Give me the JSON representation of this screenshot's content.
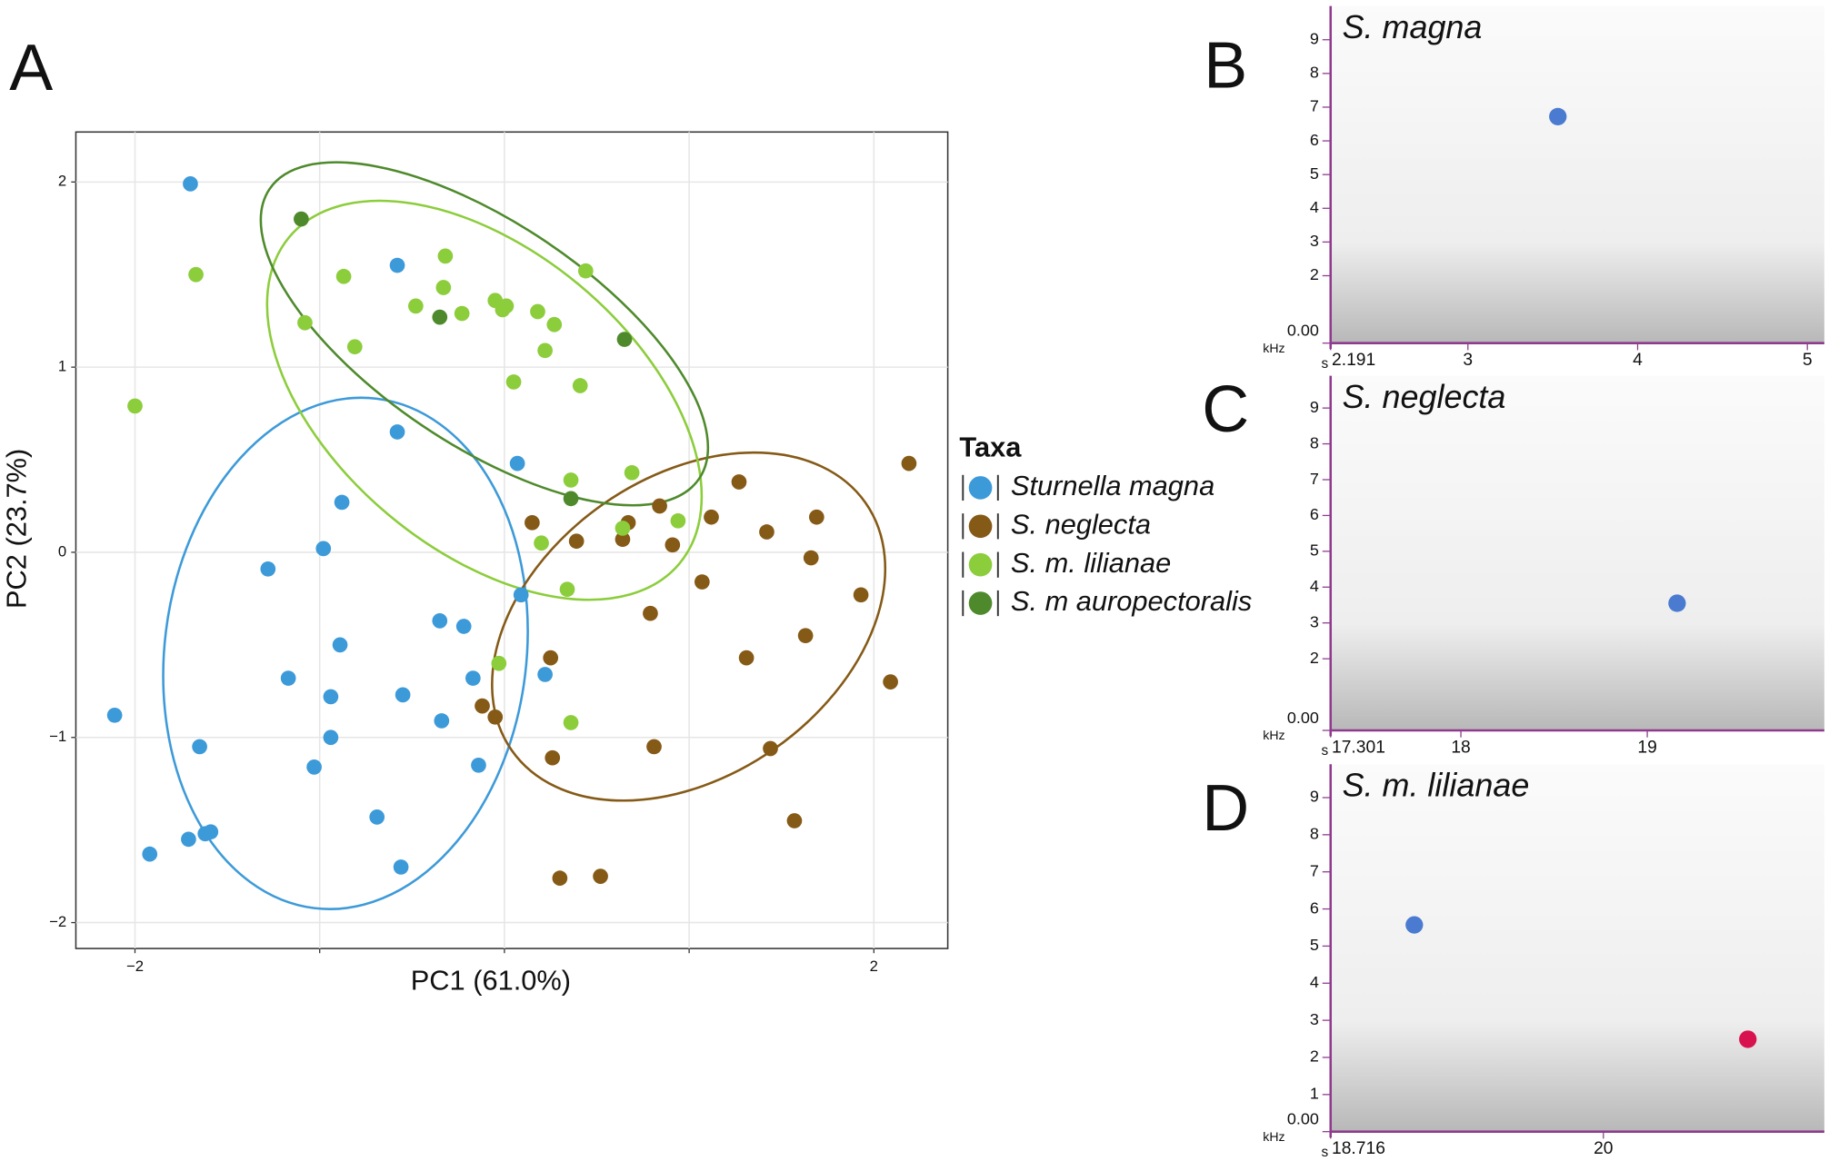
{
  "chart_data": [
    {
      "type": "scatter",
      "panel": "A",
      "xlabel": "PC1 (61.0%)",
      "ylabel": "PC2 (23.7%)",
      "xlim": [
        -2.32,
        2.4
      ],
      "ylim": [
        -2.14,
        2.27
      ],
      "xticks": [
        {
          "value": -2,
          "label": "−2"
        },
        {
          "value": 2,
          "label": "2"
        }
      ],
      "xgrid": [
        -1,
        0,
        1
      ],
      "yticks": [
        {
          "value": -2,
          "label": "−2"
        },
        {
          "value": -1,
          "label": "−1"
        },
        0,
        1,
        2
      ],
      "grid": true,
      "legend_title": "Taxa",
      "legend": "right",
      "series": [
        {
          "name": "Sturnella magna",
          "color": "#3d9ad9",
          "x": [
            -1.7,
            -0.58,
            -0.58,
            0.07,
            -0.88,
            -0.98,
            -1.28,
            -0.89,
            -0.35,
            -0.22,
            -1.17,
            -0.94,
            -0.55,
            -0.17,
            0.09,
            0.22,
            -0.34,
            -0.94,
            -2.11,
            -1.65,
            -1.03,
            -0.14,
            -0.69,
            -1.59,
            -1.62,
            -1.71,
            -1.92,
            -0.56
          ],
          "y": [
            1.99,
            1.55,
            0.65,
            0.48,
            0.27,
            0.02,
            -0.09,
            -0.5,
            -0.37,
            -0.4,
            -0.68,
            -0.78,
            -0.77,
            -0.68,
            -0.23,
            -0.66,
            -0.91,
            -1.0,
            -0.88,
            -1.05,
            -1.16,
            -1.15,
            -1.43,
            -1.51,
            -1.52,
            -1.55,
            -1.63,
            -1.7
          ]
        },
        {
          "name": "S. neglecta",
          "color": "#855a17",
          "x": [
            2.19,
            1.27,
            0.15,
            0.67,
            0.84,
            1.12,
            1.69,
            1.42,
            0.64,
            0.39,
            0.91,
            1.66,
            1.07,
            1.93,
            0.79,
            1.63,
            0.25,
            1.31,
            2.09,
            -0.12,
            -0.05,
            0.81,
            1.44,
            0.26,
            1.57,
            0.3,
            0.52
          ],
          "y": [
            0.48,
            0.38,
            0.16,
            0.16,
            0.25,
            0.19,
            0.19,
            0.11,
            0.07,
            0.06,
            0.04,
            -0.03,
            -0.16,
            -0.23,
            -0.33,
            -0.45,
            -0.57,
            -0.57,
            -0.7,
            -0.83,
            -0.89,
            -1.05,
            -1.06,
            -1.11,
            -1.45,
            -1.76,
            -1.75
          ]
        },
        {
          "name": "S. m. lilianae",
          "color": "#8ccd3c",
          "x": [
            -1.67,
            -2.0,
            -1.08,
            -0.87,
            -0.81,
            -0.48,
            -0.32,
            -0.33,
            -0.23,
            -0.05,
            -0.01,
            0.01,
            0.18,
            0.27,
            0.44,
            0.22,
            0.05,
            0.41,
            0.36,
            0.69,
            0.94,
            0.64,
            0.2,
            0.34,
            -0.03,
            0.36
          ],
          "y": [
            1.5,
            0.79,
            1.24,
            1.49,
            1.11,
            1.33,
            1.6,
            1.43,
            1.29,
            1.36,
            1.31,
            1.33,
            1.3,
            1.23,
            1.52,
            1.09,
            0.92,
            0.9,
            0.39,
            0.43,
            0.17,
            0.13,
            0.05,
            -0.2,
            -0.6,
            -0.92
          ]
        },
        {
          "name": "S. m auropectoralis",
          "color": "#4e8a2c",
          "x": [
            -1.1,
            -0.35,
            0.65,
            0.36
          ],
          "y": [
            1.8,
            1.27,
            1.15,
            0.29
          ]
        }
      ]
    },
    {
      "type": "spectrogram",
      "panel": "B",
      "title": "S. magna",
      "yunit": "kHz",
      "xunit": "s",
      "xlim": [
        2.191,
        5.1
      ],
      "ylim": [
        0,
        10
      ],
      "xticks": [
        2.191,
        3,
        4,
        5
      ],
      "yticks": [
        {
          "value": 0,
          "label": "0.00"
        },
        2,
        3,
        4,
        5,
        6,
        7,
        8,
        9
      ],
      "markers": {
        "x": [
          3.53
        ],
        "y": [
          6.72
        ],
        "colors": [
          "#4a7bd0"
        ]
      }
    },
    {
      "type": "spectrogram",
      "panel": "C",
      "title": "S. neglecta",
      "yunit": "kHz",
      "xunit": "s",
      "xlim": [
        17.301,
        19.95
      ],
      "ylim": [
        0,
        9.9
      ],
      "xticks": [
        17.301,
        18,
        19
      ],
      "yticks": [
        {
          "value": 0,
          "label": "0.00"
        },
        2,
        3,
        4,
        5,
        6,
        7,
        8,
        9
      ],
      "markers": {
        "x": [
          19.16
        ],
        "y": [
          3.55
        ],
        "colors": [
          "#4a7bd0"
        ]
      }
    },
    {
      "type": "spectrogram",
      "panel": "D",
      "title": "S. m. lilianae",
      "yunit": "kHz",
      "xunit": "s",
      "xlim": [
        18.716,
        21.04
      ],
      "ylim": [
        0,
        9.9
      ],
      "xticks": [
        18.716,
        20
      ],
      "yticks": [
        {
          "value": 0,
          "label": "0.00"
        },
        1,
        2,
        3,
        4,
        5,
        6,
        7,
        8,
        9
      ],
      "markers": {
        "x": [
          19.11,
          20.68
        ],
        "y": [
          5.57,
          2.49
        ],
        "colors": [
          "#4a7bd0",
          "#d8124f"
        ]
      }
    }
  ]
}
